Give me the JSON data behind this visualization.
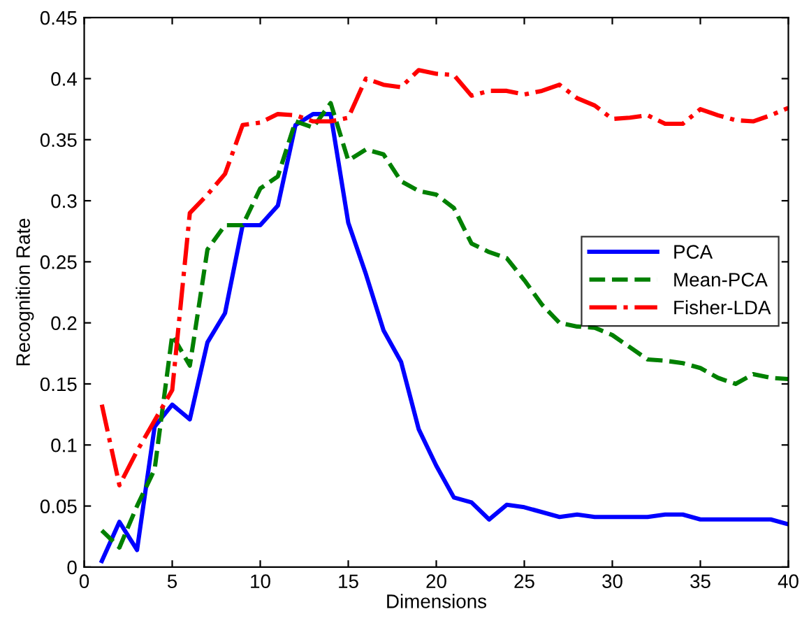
{
  "chart_data": {
    "type": "line",
    "xlabel": "Dimensions",
    "ylabel": "Recognition Rate",
    "x": [
      1,
      2,
      3,
      4,
      5,
      6,
      7,
      8,
      9,
      10,
      11,
      12,
      13,
      14,
      15,
      16,
      17,
      18,
      19,
      20,
      21,
      22,
      23,
      24,
      25,
      26,
      27,
      28,
      29,
      30,
      31,
      32,
      33,
      34,
      35,
      36,
      37,
      38,
      39,
      40
    ],
    "series": [
      {
        "name": "PCA",
        "color": "#0000ff",
        "line_style": "solid",
        "values": [
          0.005,
          0.037,
          0.014,
          0.115,
          0.133,
          0.121,
          0.184,
          0.208,
          0.28,
          0.28,
          0.296,
          0.362,
          0.371,
          0.371,
          0.282,
          0.24,
          0.194,
          0.168,
          0.113,
          0.083,
          0.057,
          0.053,
          0.039,
          0.051,
          0.049,
          0.045,
          0.041,
          0.043,
          0.041,
          0.041,
          0.041,
          0.041,
          0.043,
          0.043,
          0.039,
          0.039,
          0.039,
          0.039,
          0.039,
          0.035
        ]
      },
      {
        "name": "Mean-PCA",
        "color": "#008000",
        "line_style": "dashed",
        "values": [
          0.03,
          0.016,
          0.05,
          0.08,
          0.19,
          0.165,
          0.26,
          0.28,
          0.28,
          0.31,
          0.32,
          0.365,
          0.36,
          0.38,
          0.333,
          0.342,
          0.338,
          0.316,
          0.308,
          0.305,
          0.294,
          0.265,
          0.258,
          0.253,
          0.235,
          0.215,
          0.2,
          0.197,
          0.196,
          0.19,
          0.18,
          0.17,
          0.169,
          0.167,
          0.163,
          0.155,
          0.15,
          0.158,
          0.155,
          0.154
        ]
      },
      {
        "name": "Fisher-LDA",
        "color": "#ff0000",
        "line_style": "dashdot",
        "values": [
          0.133,
          0.067,
          0.095,
          0.12,
          0.145,
          0.29,
          0.305,
          0.322,
          0.362,
          0.364,
          0.371,
          0.37,
          0.365,
          0.365,
          0.368,
          0.4,
          0.395,
          0.393,
          0.407,
          0.404,
          0.403,
          0.386,
          0.39,
          0.39,
          0.387,
          0.39,
          0.395,
          0.384,
          0.378,
          0.367,
          0.368,
          0.37,
          0.363,
          0.363,
          0.375,
          0.37,
          0.366,
          0.365,
          0.37,
          0.376
        ]
      }
    ],
    "xlim": [
      0,
      40
    ],
    "xticks": [
      0,
      5,
      10,
      15,
      20,
      25,
      30,
      35,
      40
    ],
    "ylim": [
      0,
      0.45
    ],
    "yticks": [
      0,
      0.05,
      0.1,
      0.15,
      0.2,
      0.25,
      0.3,
      0.35,
      0.4,
      0.45
    ],
    "grid": false,
    "legend": "right"
  }
}
